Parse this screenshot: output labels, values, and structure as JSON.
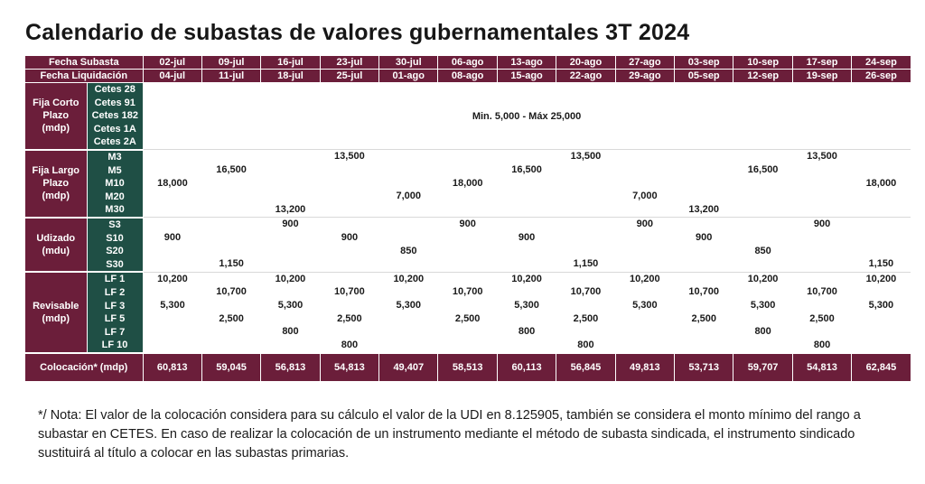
{
  "title": "Calendario de subastas de valores gubernamentales 3T 2024",
  "header": {
    "fecha_subasta_label": "Fecha Subasta",
    "fecha_liquidacion_label": "Fecha Liquidación",
    "subasta_dates": [
      "02-jul",
      "09-jul",
      "16-jul",
      "23-jul",
      "30-jul",
      "06-ago",
      "13-ago",
      "20-ago",
      "27-ago",
      "03-sep",
      "10-sep",
      "17-sep",
      "24-sep"
    ],
    "liquidacion_dates": [
      "04-jul",
      "11-jul",
      "18-jul",
      "25-jul",
      "01-ago",
      "08-ago",
      "15-ago",
      "22-ago",
      "29-ago",
      "05-sep",
      "12-sep",
      "19-sep",
      "26-sep"
    ]
  },
  "groups": [
    {
      "label_lines": [
        "Fija Corto",
        "Plazo",
        "(mdp)"
      ],
      "instruments": [
        "Cetes 28",
        "Cetes 91",
        "Cetes 182",
        "Cetes 1A",
        "Cetes 2A"
      ],
      "range_text": "Min. 5,000 - Máx 25,000"
    },
    {
      "label_lines": [
        "Fija Largo",
        "Plazo",
        "(mdp)"
      ],
      "instruments": [
        "M3",
        "M5",
        "M10",
        "M20",
        "M30"
      ],
      "cells": [
        [
          {
            "row": 2,
            "text": "18,000"
          }
        ],
        [
          {
            "row": 1,
            "text": "16,500"
          }
        ],
        [
          {
            "row": 4,
            "text": "13,200"
          }
        ],
        [
          {
            "row": 0,
            "text": "13,500"
          }
        ],
        [
          {
            "row": 3,
            "text": "7,000"
          }
        ],
        [
          {
            "row": 2,
            "text": "18,000"
          }
        ],
        [
          {
            "row": 1,
            "text": "16,500"
          }
        ],
        [
          {
            "row": 0,
            "text": "13,500"
          }
        ],
        [
          {
            "row": 3,
            "text": "7,000"
          }
        ],
        [
          {
            "row": 4,
            "text": "13,200"
          }
        ],
        [
          {
            "row": 1,
            "text": "16,500"
          }
        ],
        [
          {
            "row": 0,
            "text": "13,500"
          }
        ],
        [
          {
            "row": 2,
            "text": "18,000"
          }
        ]
      ]
    },
    {
      "label_lines": [
        "Udizado",
        "(mdu)"
      ],
      "instruments": [
        "S3",
        "S10",
        "S20",
        "S30"
      ],
      "cells": [
        [
          {
            "row": 1,
            "text": "900"
          }
        ],
        [
          {
            "row": 3,
            "text": "1,150"
          }
        ],
        [
          {
            "row": 0,
            "text": "900"
          }
        ],
        [
          {
            "row": 1,
            "text": "900"
          }
        ],
        [
          {
            "row": 2,
            "text": "850"
          }
        ],
        [
          {
            "row": 0,
            "text": "900"
          }
        ],
        [
          {
            "row": 1,
            "text": "900"
          }
        ],
        [
          {
            "row": 3,
            "text": "1,150"
          }
        ],
        [
          {
            "row": 0,
            "text": "900"
          }
        ],
        [
          {
            "row": 1,
            "text": "900"
          }
        ],
        [
          {
            "row": 2,
            "text": "850"
          }
        ],
        [
          {
            "row": 0,
            "text": "900"
          }
        ],
        [
          {
            "row": 3,
            "text": "1,150"
          }
        ]
      ]
    },
    {
      "label_lines": [
        "Revisable",
        "(mdp)"
      ],
      "instruments": [
        "LF 1",
        "LF 2",
        "LF 3",
        "LF 5",
        "LF 7",
        "LF 10"
      ],
      "cells": [
        [
          {
            "row": 0,
            "text": "10,200"
          },
          {
            "row": 2,
            "text": "5,300"
          }
        ],
        [
          {
            "row": 1,
            "text": "10,700"
          },
          {
            "row": 3,
            "text": "2,500"
          }
        ],
        [
          {
            "row": 0,
            "text": "10,200"
          },
          {
            "row": 2,
            "text": "5,300"
          },
          {
            "row": 4,
            "text": "800"
          }
        ],
        [
          {
            "row": 1,
            "text": "10,700"
          },
          {
            "row": 3,
            "text": "2,500"
          },
          {
            "row": 5,
            "text": "800"
          }
        ],
        [
          {
            "row": 0,
            "text": "10,200"
          },
          {
            "row": 2,
            "text": "5,300"
          }
        ],
        [
          {
            "row": 1,
            "text": "10,700"
          },
          {
            "row": 3,
            "text": "2,500"
          }
        ],
        [
          {
            "row": 0,
            "text": "10,200"
          },
          {
            "row": 2,
            "text": "5,300"
          },
          {
            "row": 4,
            "text": "800"
          }
        ],
        [
          {
            "row": 1,
            "text": "10,700"
          },
          {
            "row": 3,
            "text": "2,500"
          },
          {
            "row": 5,
            "text": "800"
          }
        ],
        [
          {
            "row": 0,
            "text": "10,200"
          },
          {
            "row": 2,
            "text": "5,300"
          }
        ],
        [
          {
            "row": 1,
            "text": "10,700"
          },
          {
            "row": 3,
            "text": "2,500"
          }
        ],
        [
          {
            "row": 0,
            "text": "10,200"
          },
          {
            "row": 2,
            "text": "5,300"
          },
          {
            "row": 4,
            "text": "800"
          }
        ],
        [
          {
            "row": 1,
            "text": "10,700"
          },
          {
            "row": 3,
            "text": "2,500"
          },
          {
            "row": 5,
            "text": "800"
          }
        ],
        [
          {
            "row": 0,
            "text": "10,200"
          },
          {
            "row": 2,
            "text": "5,300"
          }
        ]
      ]
    }
  ],
  "footer": {
    "label": "Colocación* (mdp)",
    "values": [
      "60,813",
      "59,045",
      "56,813",
      "54,813",
      "49,407",
      "58,513",
      "60,113",
      "56,845",
      "49,813",
      "53,713",
      "59,707",
      "54,813",
      "62,845"
    ]
  },
  "note": "*/ Nota: El valor de la colocación considera para su cálculo el valor de la UDI en 8.125905, también se considera el monto mínimo del rango a subastar en CETES. En caso de realizar la colocación de un instrumento mediante el método de subasta sindicada, el instrumento sindicado sustituirá al título a colocar en las subastas primarias.",
  "colors": {
    "header_bg": "#6b1e3a",
    "instrument_bg": "#1f4f45",
    "text": "#1a1a1a"
  }
}
